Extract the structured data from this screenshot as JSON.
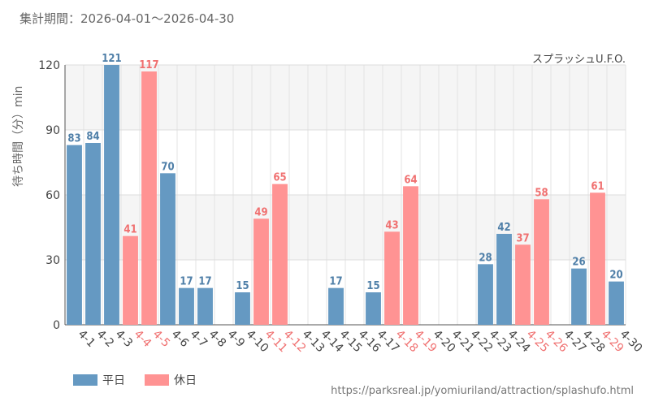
{
  "header": {
    "period": "集計期間：2026-04-01～2026-04-30",
    "attraction": "スプラッシュU.F.O."
  },
  "footer": {
    "source_url": "https://parksreal.jp/yomiuriland/attraction/splashufo.html"
  },
  "chart_data": {
    "type": "bar",
    "ylabel": "待ち時間（分）min",
    "ylim": [
      0,
      120
    ],
    "yticks": [
      0,
      30,
      60,
      90,
      120
    ],
    "grid": true,
    "legend_position": "bottom-left",
    "categories": [
      "4-1",
      "4-2",
      "4-3",
      "4-4",
      "4-5",
      "4-6",
      "4-7",
      "4-8",
      "4-9",
      "4-10",
      "4-11",
      "4-12",
      "4-13",
      "4-14",
      "4-15",
      "4-16",
      "4-17",
      "4-18",
      "4-19",
      "4-20",
      "4-21",
      "4-22",
      "4-23",
      "4-24",
      "4-25",
      "4-26",
      "4-27",
      "4-28",
      "4-29",
      "4-30"
    ],
    "day_type": [
      "weekday",
      "weekday",
      "weekday",
      "holiday",
      "holiday",
      "weekday",
      "weekday",
      "weekday",
      "weekday",
      "weekday",
      "holiday",
      "holiday",
      "weekday",
      "weekday",
      "weekday",
      "weekday",
      "weekday",
      "holiday",
      "holiday",
      "weekday",
      "weekday",
      "weekday",
      "weekday",
      "weekday",
      "holiday",
      "holiday",
      "weekday",
      "weekday",
      "holiday",
      "weekday"
    ],
    "values": [
      83,
      84,
      121,
      41,
      117,
      70,
      17,
      17,
      null,
      15,
      49,
      65,
      null,
      null,
      17,
      null,
      15,
      43,
      64,
      null,
      null,
      null,
      28,
      42,
      37,
      58,
      null,
      26,
      61,
      20
    ],
    "series": [
      {
        "name": "平日",
        "key": "weekday",
        "color": "#6599c2"
      },
      {
        "name": "休日",
        "key": "holiday",
        "color": "#ff9393"
      }
    ],
    "label_colors": {
      "weekday": "#4f7fa8",
      "holiday": "#f07070",
      "axis_weekday": "#444444"
    }
  }
}
